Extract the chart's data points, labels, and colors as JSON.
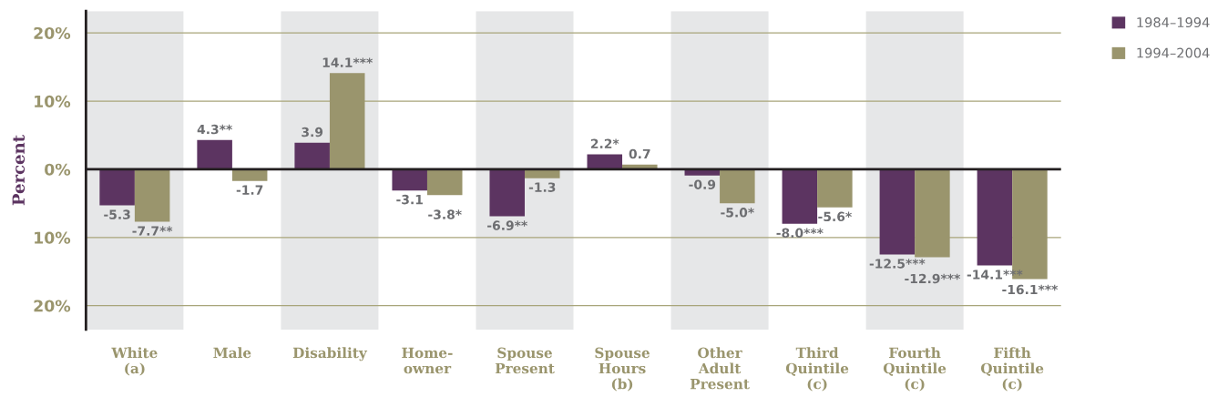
{
  "chart_data": {
    "type": "bar",
    "categories": [
      "White\n(a)",
      "Male",
      "Disability",
      "Home-\nowner",
      "Spouse\nPresent",
      "Spouse\nHours\n(b)",
      "Other\nAdult\nPresent",
      "Third\nQuintile\n(c)",
      "Fourth\nQuintile\n(c)",
      "Fifth\nQuintile\n(c)"
    ],
    "series": [
      {
        "name": "1984–1994",
        "color": "#5c3461",
        "values": [
          -5.3,
          4.3,
          3.9,
          -3.1,
          -6.9,
          2.2,
          -0.9,
          -8.0,
          -12.5,
          -14.1
        ],
        "value_labels": [
          "-5.3",
          "4.3**",
          "3.9",
          "-3.1",
          "-6.9**",
          "2.2*",
          "-0.9",
          "-8.0***",
          "-12.5***",
          "-14.1***"
        ]
      },
      {
        "name": "1994–2004",
        "color": "#9a956d",
        "values": [
          -7.7,
          -1.7,
          14.1,
          -3.8,
          -1.3,
          0.7,
          -5.0,
          -5.6,
          -12.9,
          -16.1
        ],
        "value_labels": [
          "-7.7**",
          "-1.7",
          "14.1***",
          "-3.8*",
          "-1.3",
          "0.7",
          "-5.0*",
          "-5.6*",
          "-12.9***",
          "-16.1***"
        ]
      }
    ],
    "ylabel": "Percent",
    "ylim": [
      -23.5,
      23.2
    ],
    "yticks": [
      {
        "value": -20,
        "label": "20%"
      },
      {
        "value": -10,
        "label": "10%"
      },
      {
        "value": 0,
        "label": "0%"
      },
      {
        "value": 10,
        "label": "10%"
      },
      {
        "value": 20,
        "label": "20%"
      }
    ],
    "grid": "y",
    "legend": "top right",
    "bands": [
      {
        "axis": "x",
        "from": "White\n(a)",
        "to": "White\n(a)",
        "color": "#e6e7e8"
      },
      {
        "axis": "x",
        "from": "Disability",
        "to": "Disability",
        "color": "#e6e7e8"
      },
      {
        "axis": "x",
        "from": "Spouse\nPresent",
        "to": "Spouse\nPresent",
        "color": "#e6e7e8"
      },
      {
        "axis": "x",
        "from": "Other\nAdult\nPresent",
        "to": "Other\nAdult\nPresent",
        "color": "#e6e7e8"
      },
      {
        "axis": "x",
        "from": "Fourth\nQuintile\n(c)",
        "to": "Fourth\nQuintile\n(c)",
        "color": "#e6e7e8"
      }
    ]
  }
}
